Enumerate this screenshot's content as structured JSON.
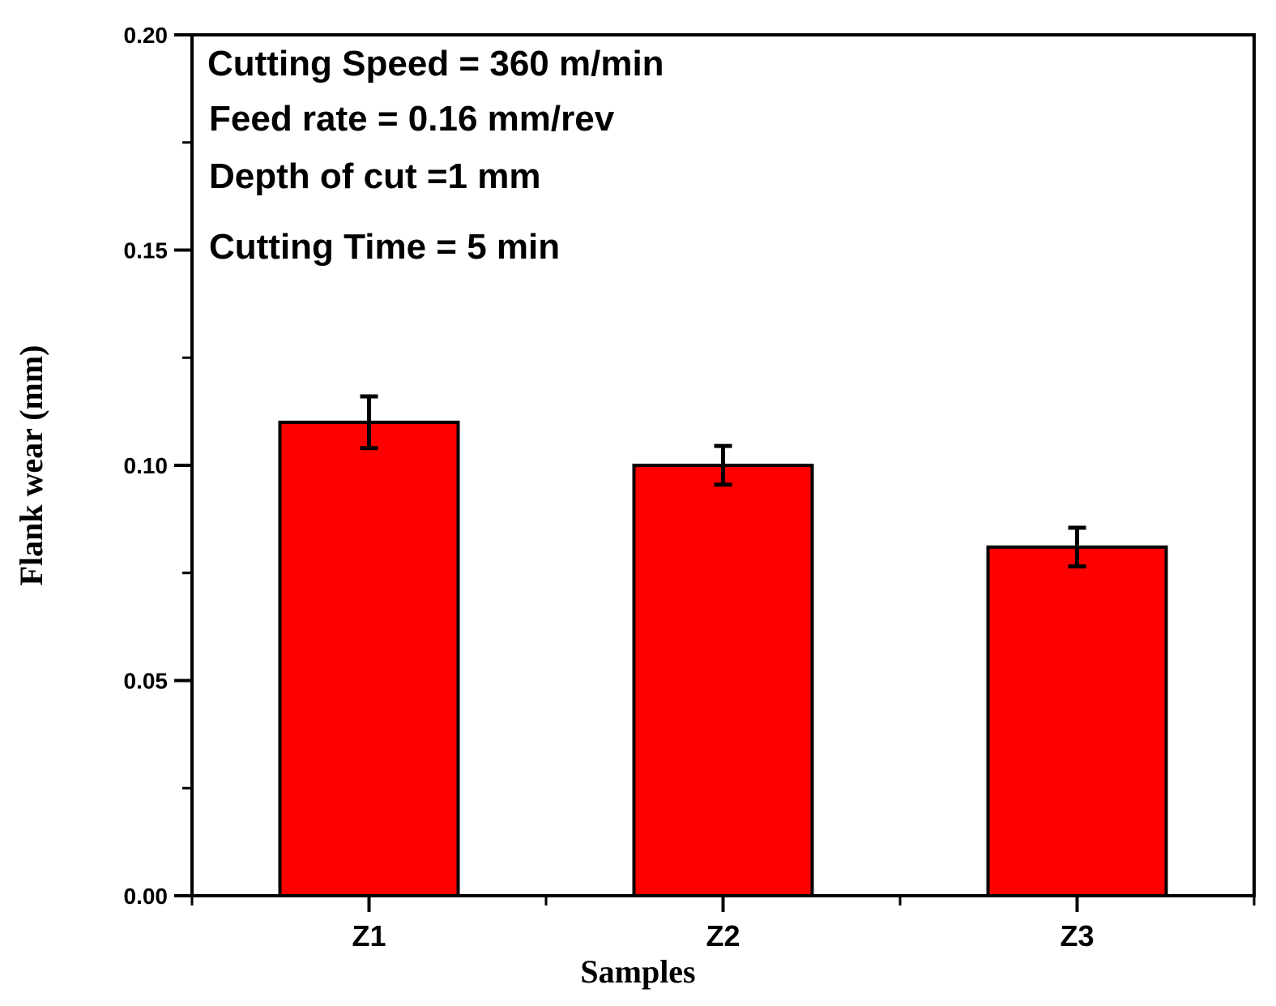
{
  "chart_data": {
    "type": "bar",
    "title": "",
    "xlabel": "Samples",
    "ylabel": "Flank wear (mm)",
    "categories": [
      "Z1",
      "Z2",
      "Z3"
    ],
    "values": [
      0.11,
      0.1,
      0.081
    ],
    "error": [
      0.006,
      0.0045,
      0.0045
    ],
    "ylim": [
      0,
      0.2
    ],
    "yticks": [
      "0.00",
      "0.05",
      "0.10",
      "0.15",
      "0.20"
    ],
    "ytick_values": [
      0,
      0.05,
      0.1,
      0.15,
      0.2
    ],
    "grid": false,
    "bar_color": "#ff0000",
    "annotations": [
      "Cutting Speed = 360 m/min",
      "Feed rate = 0.16 mm/rev",
      "Depth of cut =1 mm",
      "Cutting Time = 5 min"
    ]
  }
}
